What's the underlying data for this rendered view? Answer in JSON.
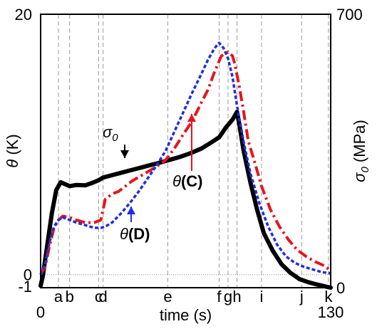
{
  "chart_data": {
    "type": "line",
    "xlabel": "time (s)",
    "ylabel_left_symbol": "θ",
    "ylabel_left_unit": "(K)",
    "ylabel_right_symbol": "σ",
    "ylabel_right_sub": "0",
    "ylabel_right_unit": "(MPa)",
    "xlim": [
      0,
      130
    ],
    "ylim_left": [
      -1,
      20
    ],
    "ylim_right": [
      0,
      700
    ],
    "x_ticks": [
      "0",
      "130"
    ],
    "y_left_ticks": [
      "20",
      "0",
      "-1"
    ],
    "y_right_ticks": [
      "700",
      "0"
    ],
    "events": [
      {
        "label": "a",
        "x": 8
      },
      {
        "label": "b",
        "x": 13
      },
      {
        "label": "c",
        "x": 26
      },
      {
        "label": "d",
        "x": 28
      },
      {
        "label": "e",
        "x": 57
      },
      {
        "label": "f",
        "x": 80
      },
      {
        "label": "g",
        "x": 84
      },
      {
        "label": "h",
        "x": 88
      },
      {
        "label": "i",
        "x": 99
      },
      {
        "label": "j",
        "x": 117
      },
      {
        "label": "k",
        "x": 129
      }
    ],
    "annotations": [
      {
        "symbol": "σ",
        "sub": "0",
        "suffix": ""
      },
      {
        "symbol": "θ",
        "sub": "",
        "suffix": "(C)"
      },
      {
        "symbol": "θ",
        "sub": "",
        "suffix": "(D)"
      }
    ],
    "series": [
      {
        "axis": "right",
        "color": "#000000",
        "style": "solid",
        "x": [
          0,
          1,
          3,
          5,
          7,
          9,
          11,
          13,
          16,
          20,
          23,
          26,
          28,
          32,
          36,
          40,
          44,
          48,
          52,
          57,
          62,
          67,
          72,
          76,
          80,
          83,
          86,
          88,
          89,
          91,
          94,
          97,
          100,
          104,
          108,
          112,
          116,
          120,
          124,
          127,
          130
        ],
        "values": [
          5,
          30,
          110,
          190,
          250,
          270,
          265,
          260,
          263,
          262,
          268,
          275,
          282,
          288,
          294,
          300,
          306,
          312,
          318,
          326,
          334,
          344,
          356,
          370,
          385,
          410,
          430,
          450,
          420,
          350,
          270,
          200,
          140,
          95,
          60,
          38,
          22,
          14,
          8,
          4,
          0
        ]
      },
      {
        "axis": "left",
        "color": "#e8141c",
        "style": "dashdot",
        "x": [
          0,
          2,
          4,
          6,
          8,
          10,
          13,
          16,
          20,
          24,
          27,
          29,
          32,
          35,
          38,
          41,
          44,
          48,
          52,
          56,
          60,
          64,
          68,
          72,
          75,
          78,
          81,
          84,
          86,
          87,
          89,
          91,
          93,
          96,
          99,
          103,
          107,
          111,
          115,
          119,
          123,
          127,
          130
        ],
        "values": [
          0,
          0.6,
          2.2,
          3.6,
          4.2,
          4.5,
          4.4,
          4.2,
          4.0,
          4.0,
          4.2,
          5.8,
          6.2,
          6.4,
          6.8,
          7.2,
          7.5,
          7.9,
          8.3,
          8.8,
          9.7,
          10.8,
          11.8,
          13.2,
          14.2,
          15.6,
          16.8,
          17.1,
          16.8,
          16.2,
          14.5,
          12.5,
          10.3,
          8.6,
          6.8,
          5.0,
          3.7,
          2.7,
          1.9,
          1.4,
          1.0,
          0.7,
          0.3
        ]
      },
      {
        "axis": "left",
        "color": "#1f2ee0",
        "style": "dotted",
        "x": [
          0,
          2,
          4,
          6,
          8,
          10,
          13,
          16,
          20,
          24,
          27,
          29,
          32,
          36,
          40,
          44,
          48,
          52,
          56,
          60,
          64,
          68,
          72,
          75,
          78,
          80,
          82,
          84,
          86,
          88,
          91,
          94,
          98,
          102,
          106,
          110,
          114,
          118,
          122,
          126,
          130
        ],
        "values": [
          0,
          0.8,
          2.5,
          3.7,
          4.2,
          4.4,
          4.2,
          4.0,
          3.8,
          3.6,
          3.6,
          3.7,
          4.0,
          4.7,
          5.5,
          6.4,
          7.4,
          8.4,
          9.5,
          11.0,
          12.5,
          14.0,
          15.4,
          16.5,
          17.4,
          17.8,
          17.4,
          16.6,
          15.2,
          13.0,
          10.2,
          7.8,
          5.5,
          3.7,
          2.3,
          1.4,
          0.9,
          0.6,
          0.4,
          0.2,
          0.1
        ]
      }
    ]
  }
}
